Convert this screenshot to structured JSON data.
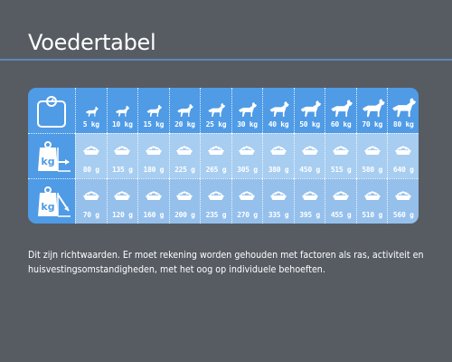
{
  "title": "Voedertabel",
  "weights": [
    "5 kg",
    "10 kg",
    "15 kg",
    "20 kg",
    "25 kg",
    "30 kg",
    "40 kg",
    "50 kg",
    "60 kg",
    "70 kg",
    "80 kg"
  ],
  "row_a": [
    "80 g",
    "135 g",
    "180 g",
    "225 g",
    "265 g",
    "305 g",
    "380 g",
    "450 g",
    "515 g",
    "580 g",
    "640 g"
  ],
  "row_b": [
    "70 g",
    "120 g",
    "160 g",
    "200 g",
    "235 g",
    "270 g",
    "335 g",
    "395 g",
    "455 g",
    "510 g",
    "560 g"
  ],
  "icons": {
    "scale": "scale-icon",
    "row_a": "kg-weight-trend-icon",
    "row_b": "kg-weight-decline-icon",
    "dog": "dog-icon",
    "bowl": "food-bowl-icon"
  },
  "note": "Dit zijn richtwaarden. Er moet rekening worden gehouden met factoren als ras, activiteit en huisvestingsomstandigheden, met het oog op individuele behoeften.",
  "colors": {
    "background": "#575c63",
    "accent_line": "#5d87b8",
    "header_blue": "#4f9be6",
    "row_light": "#a7cdf1",
    "row_mid": "#95c0ec"
  }
}
